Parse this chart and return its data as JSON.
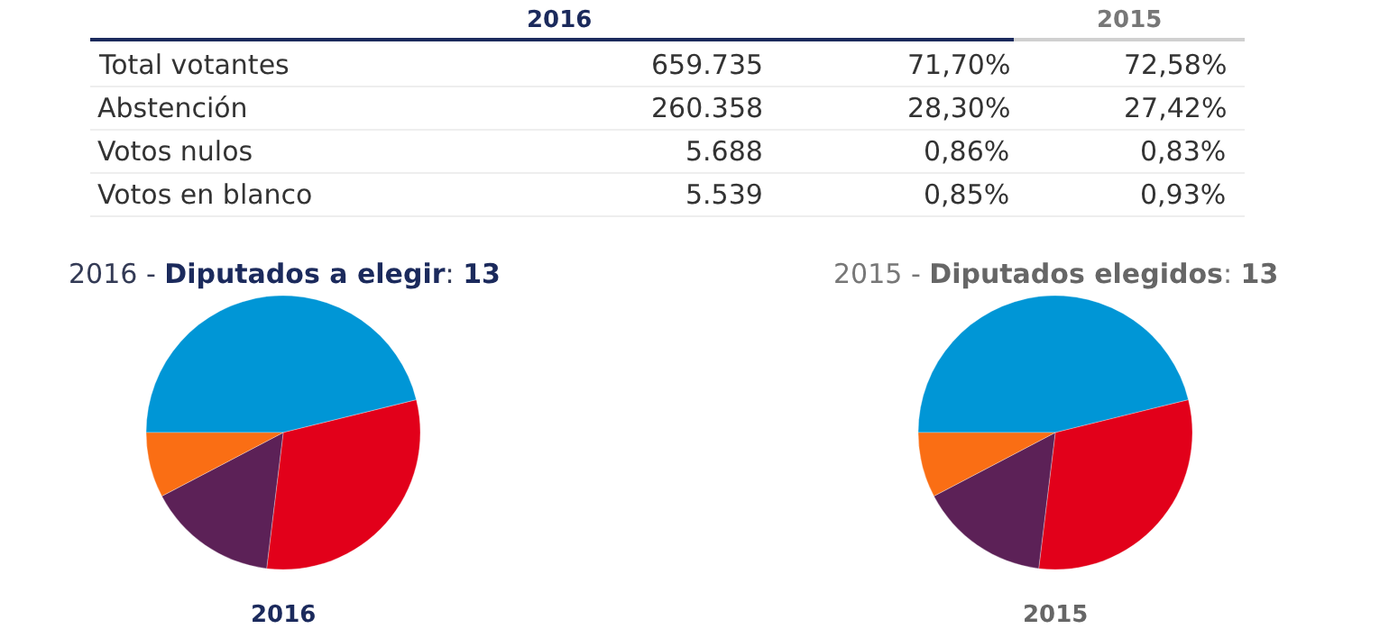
{
  "chart_data": [
    {
      "type": "other",
      "categories": [
        "Total votantes",
        "Abstención",
        "Votos nulos",
        "Votos en blanco"
      ],
      "series": [
        {
          "name": "2016",
          "values": [
            659735,
            260358,
            5688,
            5539
          ],
          "value_labels": [
            "659.735",
            "260.358",
            "5.688",
            "5.539"
          ]
        },
        {
          "values": [
            71.7,
            28.3,
            0.86,
            0.85
          ],
          "value_labels": [
            "71,70%",
            "28,30%",
            "0,86%",
            "0,85%"
          ]
        },
        {
          "name": "2015",
          "values": [
            72.58,
            27.42,
            0.83,
            0.93
          ],
          "value_labels": [
            "72,58%",
            "27,42%",
            "0,83%",
            "0,93%"
          ]
        }
      ]
    },
    {
      "type": "pie",
      "title": "2016 - Diputados a elegir: 13",
      "xlabel": "2016",
      "categories": [
        null,
        null,
        null,
        null
      ],
      "values": [
        46.15,
        30.77,
        15.38,
        7.69
      ],
      "colors": [
        "#0096d6",
        "#e2001a",
        "#5c2157",
        "#fa6e14"
      ]
    },
    {
      "type": "pie",
      "title": "2015 - Diputados elegidos: 13",
      "xlabel": "2015",
      "categories": [
        null,
        null,
        null,
        null
      ],
      "values": [
        46.15,
        30.77,
        15.38,
        7.69
      ],
      "colors": [
        "#0096d6",
        "#e2001a",
        "#5c2157",
        "#fa6e14"
      ]
    }
  ]
}
